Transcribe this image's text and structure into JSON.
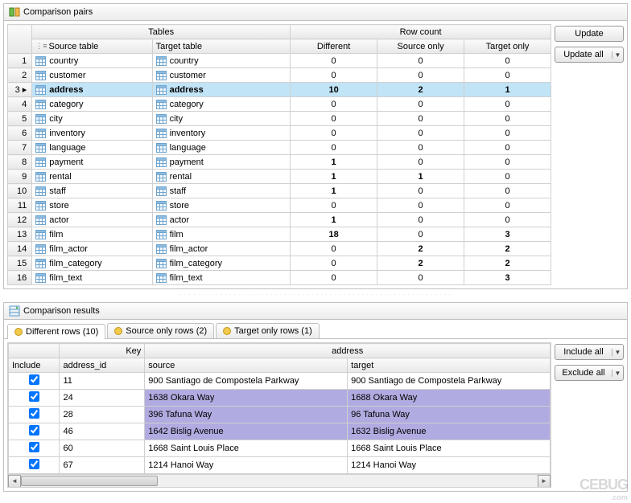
{
  "panel1": {
    "title": "Comparison pairs"
  },
  "panel2": {
    "title": "Comparison results"
  },
  "buttons": {
    "update": "Update",
    "update_all": "Update all",
    "include_all": "Include all",
    "exclude_all": "Exclude all"
  },
  "upper_grid": {
    "group_headers": {
      "tables": "Tables",
      "rowcount": "Row count"
    },
    "headers": {
      "source": "Source table",
      "target": "Target table",
      "diff": "Different",
      "src_only": "Source only",
      "tgt_only": "Target only"
    },
    "selected_index": 2,
    "rows": [
      {
        "n": 1,
        "src": "country",
        "tgt": "country",
        "diff": 0,
        "so": 0,
        "to": 0
      },
      {
        "n": 2,
        "src": "customer",
        "tgt": "customer",
        "diff": 0,
        "so": 0,
        "to": 0
      },
      {
        "n": 3,
        "src": "address",
        "tgt": "address",
        "diff": 10,
        "so": 2,
        "to": 1
      },
      {
        "n": 4,
        "src": "category",
        "tgt": "category",
        "diff": 0,
        "so": 0,
        "to": 0
      },
      {
        "n": 5,
        "src": "city",
        "tgt": "city",
        "diff": 0,
        "so": 0,
        "to": 0
      },
      {
        "n": 6,
        "src": "inventory",
        "tgt": "inventory",
        "diff": 0,
        "so": 0,
        "to": 0
      },
      {
        "n": 7,
        "src": "language",
        "tgt": "language",
        "diff": 0,
        "so": 0,
        "to": 0
      },
      {
        "n": 8,
        "src": "payment",
        "tgt": "payment",
        "diff": 1,
        "so": 0,
        "to": 0
      },
      {
        "n": 9,
        "src": "rental",
        "tgt": "rental",
        "diff": 1,
        "so": 1,
        "to": 0
      },
      {
        "n": 10,
        "src": "staff",
        "tgt": "staff",
        "diff": 1,
        "so": 0,
        "to": 0
      },
      {
        "n": 11,
        "src": "store",
        "tgt": "store",
        "diff": 0,
        "so": 0,
        "to": 0
      },
      {
        "n": 12,
        "src": "actor",
        "tgt": "actor",
        "diff": 1,
        "so": 0,
        "to": 0
      },
      {
        "n": 13,
        "src": "film",
        "tgt": "film",
        "diff": 18,
        "so": 0,
        "to": 3
      },
      {
        "n": 14,
        "src": "film_actor",
        "tgt": "film_actor",
        "diff": 0,
        "so": 2,
        "to": 2
      },
      {
        "n": 15,
        "src": "film_category",
        "tgt": "film_category",
        "diff": 0,
        "so": 2,
        "to": 2
      },
      {
        "n": 16,
        "src": "film_text",
        "tgt": "film_text",
        "diff": 0,
        "so": 0,
        "to": 3
      }
    ]
  },
  "tabs": {
    "diff": "Different rows (10)",
    "src": "Source only rows (2)",
    "tgt": "Target only rows (1)",
    "active": 0
  },
  "lower_grid": {
    "group_headers": {
      "key": "Key",
      "address": "address"
    },
    "headers": {
      "include": "Include",
      "id": "address_id",
      "source": "source",
      "target": "target"
    },
    "rows": [
      {
        "inc": true,
        "id": 11,
        "src": "900 Santiago de Compostela Parkway",
        "tgt": "900 Santiago de Compostela Parkway",
        "hl": false
      },
      {
        "inc": true,
        "id": 24,
        "src": "1638 Okara Way",
        "tgt": "1688 Okara Way",
        "hl": true
      },
      {
        "inc": true,
        "id": 28,
        "src": "396 Tafuna Way",
        "tgt": "96 Tafuna Way",
        "hl": true
      },
      {
        "inc": true,
        "id": 46,
        "src": "1642 Bislig Avenue",
        "tgt": "1632 Bislig Avenue",
        "hl": true
      },
      {
        "inc": true,
        "id": 60,
        "src": "1668 Saint Louis Place",
        "tgt": "1668 Saint Louis Place",
        "hl": false
      },
      {
        "inc": true,
        "id": 67,
        "src": "1214 Hanoi Way",
        "tgt": "1214 Hanoi Way",
        "hl": false
      }
    ]
  },
  "colors": {
    "selected_row": "#c1e4f7",
    "diff_highlight": "#b0abe0",
    "header_bg_from": "#fafafa",
    "header_bg_to": "#e8e8e8",
    "border": "#d0d0d0"
  },
  "watermark": {
    "main": "CEBUG",
    "sub": ".com"
  }
}
